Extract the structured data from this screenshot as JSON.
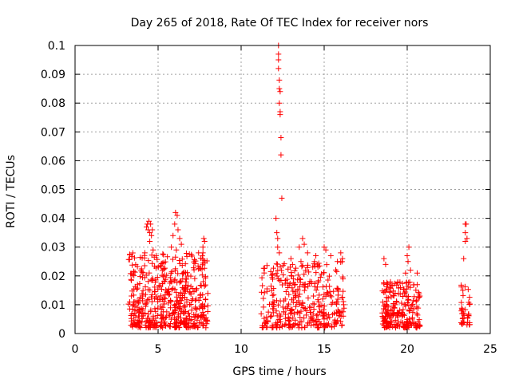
{
  "chart_data": {
    "type": "scatter",
    "title": "Day 265 of 2018, Rate Of TEC Index for receiver nors",
    "xlabel": "GPS time / hours",
    "ylabel": "ROTI / TECUs",
    "xlim": [
      0,
      25
    ],
    "ylim": [
      0,
      0.1
    ],
    "xticks": [
      0,
      5,
      10,
      15,
      20,
      25
    ],
    "yticks": [
      0,
      0.01,
      0.02,
      0.03,
      0.04,
      0.05,
      0.06,
      0.07,
      0.08,
      0.09,
      0.1
    ],
    "xtick_labels": [
      "0",
      "5",
      "10",
      "15",
      "20",
      "25"
    ],
    "ytick_labels": [
      "0",
      "0.01",
      "0.02",
      "0.03",
      "0.04",
      "0.05",
      "0.06",
      "0.07",
      "0.08",
      "0.09",
      "0.1"
    ],
    "grid": true,
    "marker": "+",
    "marker_color": "#ff0000",
    "series": [
      {
        "name": "ROTI",
        "clusters": [
          {
            "x_range": [
              3.2,
              8.0
            ],
            "y_range": [
              0.002,
              0.028
            ],
            "count": 520
          },
          {
            "x_range": [
              11.2,
              16.2
            ],
            "y_range": [
              0.002,
              0.025
            ],
            "count": 360
          },
          {
            "x_range": [
              18.5,
              20.8
            ],
            "y_range": [
              0.002,
              0.018
            ],
            "count": 220
          },
          {
            "x_range": [
              23.2,
              23.8
            ],
            "y_range": [
              0.003,
              0.017
            ],
            "count": 40
          }
        ],
        "points": [
          [
            4.3,
            0.037
          ],
          [
            4.35,
            0.038
          ],
          [
            4.4,
            0.036
          ],
          [
            4.45,
            0.039
          ],
          [
            4.5,
            0.035
          ],
          [
            4.55,
            0.038
          ],
          [
            4.6,
            0.034
          ],
          [
            4.65,
            0.036
          ],
          [
            4.2,
            0.028
          ],
          [
            4.5,
            0.032
          ],
          [
            4.7,
            0.029
          ],
          [
            5.8,
            0.03
          ],
          [
            5.9,
            0.034
          ],
          [
            6.0,
            0.038
          ],
          [
            6.05,
            0.042
          ],
          [
            6.15,
            0.041
          ],
          [
            6.2,
            0.036
          ],
          [
            6.3,
            0.033
          ],
          [
            6.1,
            0.029
          ],
          [
            6.4,
            0.031
          ],
          [
            7.7,
            0.03
          ],
          [
            7.75,
            0.033
          ],
          [
            7.8,
            0.032
          ],
          [
            7.7,
            0.028
          ],
          [
            12.1,
            0.04
          ],
          [
            12.15,
            0.035
          ],
          [
            12.2,
            0.033
          ],
          [
            12.25,
            0.097
          ],
          [
            12.25,
            0.1
          ],
          [
            12.25,
            0.095
          ],
          [
            12.25,
            0.092
          ],
          [
            12.3,
            0.088
          ],
          [
            12.3,
            0.085
          ],
          [
            12.35,
            0.084
          ],
          [
            12.3,
            0.08
          ],
          [
            12.35,
            0.077
          ],
          [
            12.35,
            0.076
          ],
          [
            12.4,
            0.068
          ],
          [
            12.4,
            0.062
          ],
          [
            12.45,
            0.047
          ],
          [
            12.2,
            0.03
          ],
          [
            12.3,
            0.028
          ],
          [
            13.0,
            0.026
          ],
          [
            13.5,
            0.03
          ],
          [
            13.7,
            0.033
          ],
          [
            13.8,
            0.031
          ],
          [
            14.0,
            0.028
          ],
          [
            14.5,
            0.027
          ],
          [
            15.0,
            0.03
          ],
          [
            15.1,
            0.029
          ],
          [
            15.4,
            0.027
          ],
          [
            16.0,
            0.028
          ],
          [
            16.1,
            0.026
          ],
          [
            15.8,
            0.025
          ],
          [
            18.6,
            0.026
          ],
          [
            18.7,
            0.024
          ],
          [
            19.9,
            0.021
          ],
          [
            20.0,
            0.027
          ],
          [
            20.1,
            0.03
          ],
          [
            20.05,
            0.025
          ],
          [
            20.2,
            0.022
          ],
          [
            20.6,
            0.021
          ],
          [
            23.4,
            0.026
          ],
          [
            23.5,
            0.032
          ],
          [
            23.5,
            0.035
          ],
          [
            23.55,
            0.038
          ],
          [
            23.6,
            0.033
          ],
          [
            23.5,
            0.038
          ]
        ]
      }
    ]
  }
}
